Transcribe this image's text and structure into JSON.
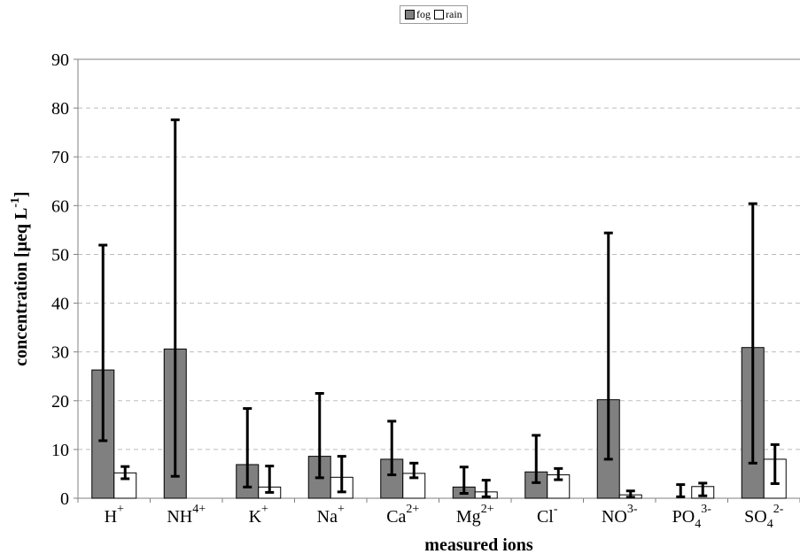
{
  "chart_data": {
    "type": "bar",
    "xlabel": "measured ions",
    "ylabel": "concentration [μeq L",
    "ylabel_sup": "-1",
    "ylabel_end": "]",
    "ylim": [
      0,
      90
    ],
    "yticks": [
      0,
      10,
      20,
      30,
      40,
      50,
      60,
      70,
      80,
      90
    ],
    "grid": true,
    "legend_position": "top-center",
    "categories": [
      {
        "base": "H",
        "sub": "",
        "sup": "+"
      },
      {
        "base": "NH",
        "sub": "",
        "sup": "4+"
      },
      {
        "base": "K",
        "sub": "",
        "sup": "+"
      },
      {
        "base": "Na",
        "sub": "",
        "sup": "+"
      },
      {
        "base": "Ca",
        "sub": "",
        "sup": "2+"
      },
      {
        "base": "Mg",
        "sub": "",
        "sup": "2+"
      },
      {
        "base": "Cl",
        "sub": "",
        "sup": "-"
      },
      {
        "base": "NO",
        "sub": "",
        "sup": "3-"
      },
      {
        "base": "PO",
        "sub": "4",
        "sup": "3-"
      },
      {
        "base": "SO",
        "sub": "4",
        "sup": "2-"
      }
    ],
    "series": [
      {
        "name": "fog",
        "color": "#808080",
        "values": [
          26.3,
          30.6,
          6.9,
          8.6,
          8.0,
          2.3,
          5.4,
          20.2,
          0,
          30.9
        ],
        "err_low": [
          11.8,
          4.5,
          2.3,
          4.2,
          4.8,
          1.0,
          3.2,
          8.0,
          0.3,
          7.2
        ],
        "err_high": [
          51.9,
          77.6,
          18.4,
          21.5,
          15.8,
          6.4,
          12.9,
          54.4,
          2.8,
          60.4
        ]
      },
      {
        "name": "rain",
        "color": "#ffffff",
        "values": [
          5.2,
          0,
          2.3,
          4.3,
          5.1,
          1.3,
          4.8,
          0.7,
          2.4,
          8.0
        ],
        "err_low": [
          4.0,
          0,
          1.2,
          1.3,
          4.2,
          0.3,
          3.8,
          0.2,
          0.5,
          3.0
        ],
        "err_high": [
          6.5,
          0,
          6.6,
          8.6,
          7.2,
          3.7,
          6.1,
          1.5,
          3.1,
          11.0
        ]
      }
    ]
  }
}
